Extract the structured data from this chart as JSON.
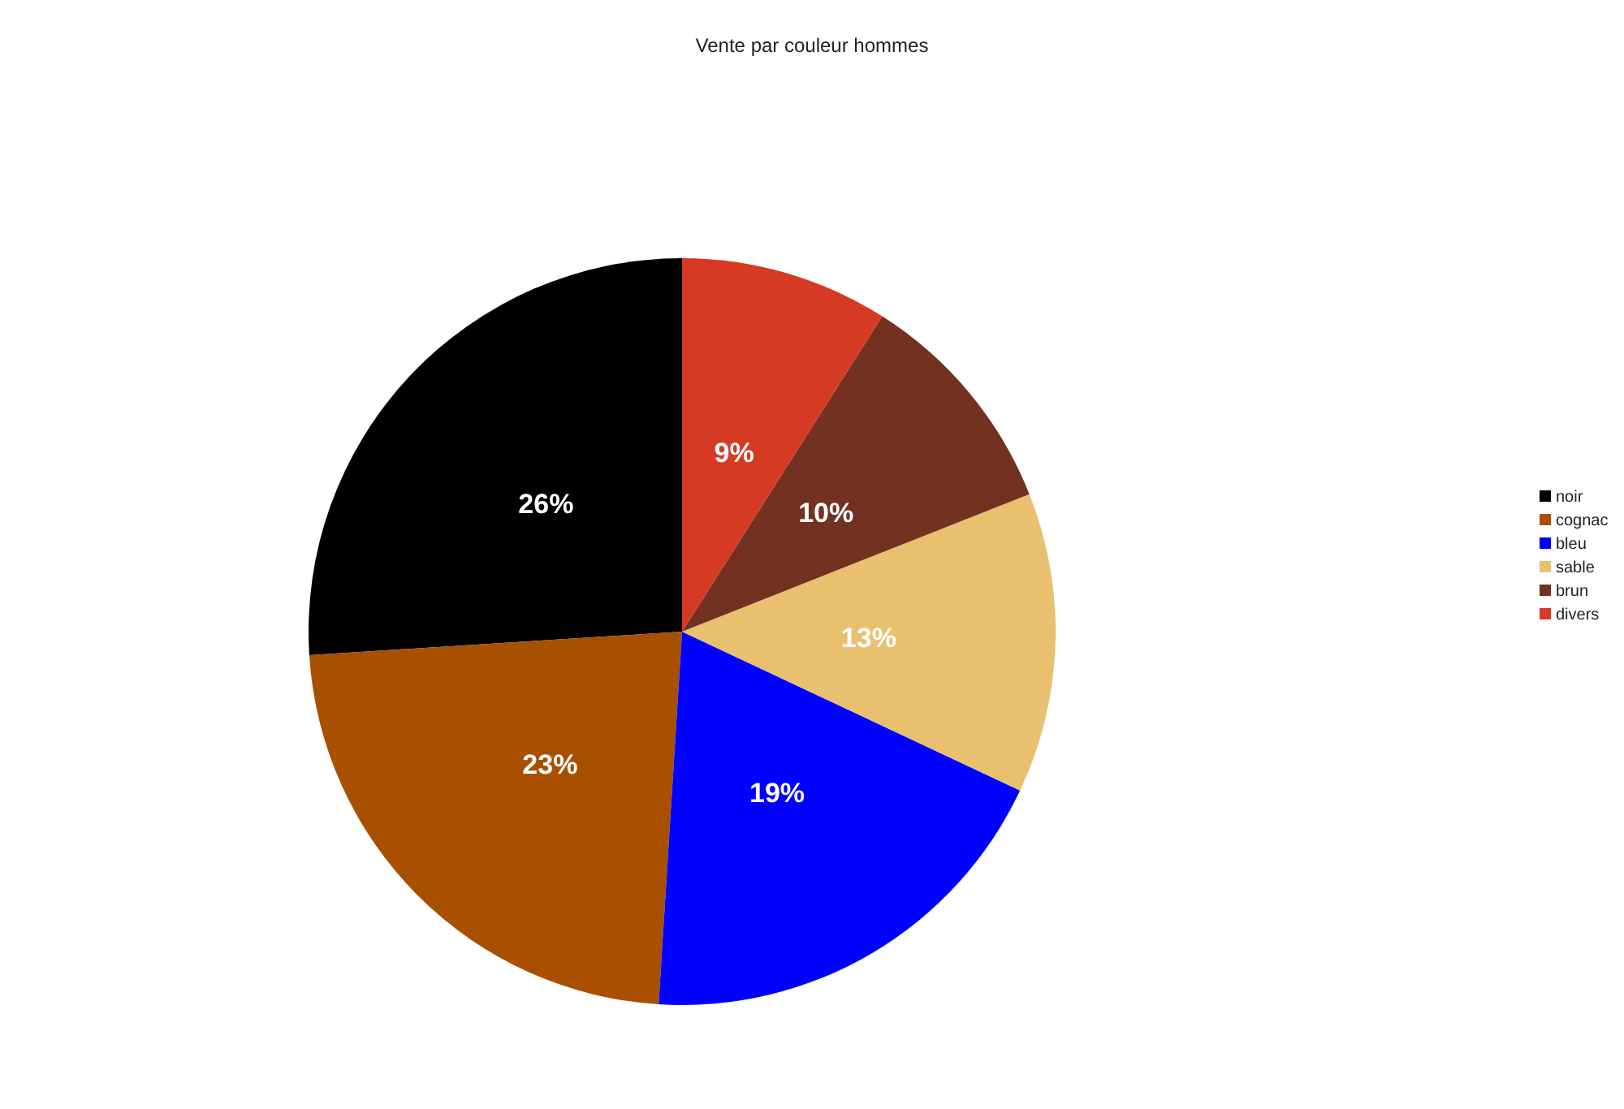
{
  "chart_data": {
    "type": "pie",
    "title": "Vente par couleur hommes",
    "categories": [
      "noir",
      "cognac",
      "bleu",
      "sable",
      "brun",
      "divers"
    ],
    "values": [
      26,
      23,
      19,
      13,
      10,
      9
    ],
    "colors": [
      "#000000",
      "#a85000",
      "#0000ff",
      "#e8c06e",
      "#733122",
      "#d63a22"
    ],
    "value_labels": [
      "26%",
      "23%",
      "19%",
      "13%",
      "10%",
      "9%"
    ],
    "legend": "right"
  }
}
